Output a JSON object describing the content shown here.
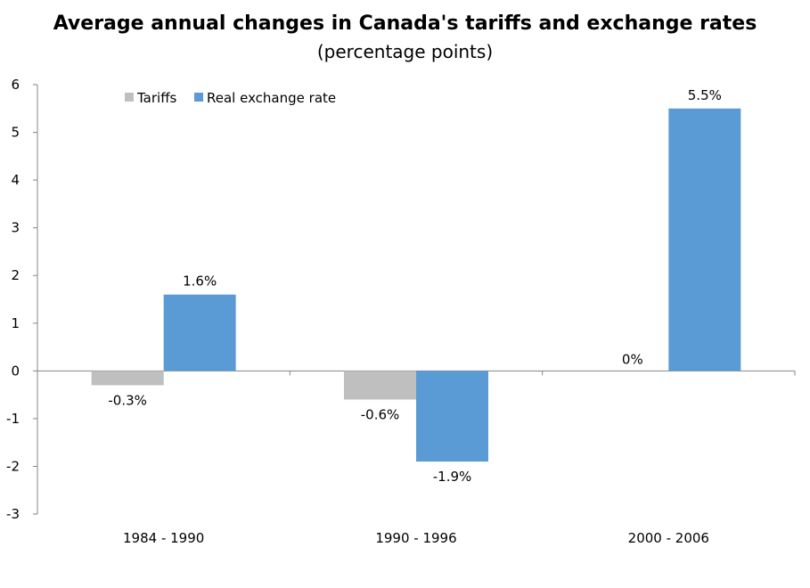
{
  "chart_data": {
    "type": "bar",
    "title": "Average annual changes in Canada's tariffs and exchange rates",
    "subtitle": "(percentage points)",
    "categories": [
      "1984 - 1990",
      "1990 - 1996",
      "2000 - 2006"
    ],
    "series": [
      {
        "name": "Tariffs",
        "values": [
          -0.3,
          -0.6,
          0
        ],
        "labels": [
          "-0.3%",
          "-0.6%",
          "0%"
        ],
        "color": "#bfbfbf"
      },
      {
        "name": "Real exchange rate",
        "values": [
          1.6,
          -1.9,
          5.5
        ],
        "labels": [
          "1.6%",
          "-1.9%",
          "5.5%"
        ],
        "color": "#5b9bd5"
      }
    ],
    "ylim": [
      -3,
      6
    ],
    "yticks": [
      "-3",
      "-2",
      "-1",
      "0",
      "1",
      "2",
      "3",
      "4",
      "5",
      "6"
    ],
    "grid": false,
    "legend_position": "top-left"
  }
}
